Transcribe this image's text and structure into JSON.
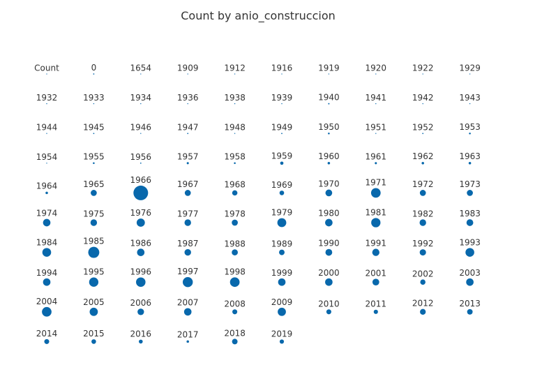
{
  "chart_data": {
    "type": "scatter",
    "title": "Count by anio_construccion",
    "xlabel": "",
    "ylabel": "",
    "grid": false,
    "legend": "none",
    "columns": 10,
    "color": "#0868ac",
    "categories": [
      "Count",
      "0",
      "1654",
      "1909",
      "1912",
      "1916",
      "1919",
      "1920",
      "1922",
      "1929",
      "1932",
      "1933",
      "1934",
      "1936",
      "1938",
      "1939",
      "1940",
      "1941",
      "1942",
      "1943",
      "1944",
      "1945",
      "1946",
      "1947",
      "1948",
      "1949",
      "1950",
      "1951",
      "1952",
      "1953",
      "1954",
      "1955",
      "1956",
      "1957",
      "1958",
      "1959",
      "1960",
      "1961",
      "1962",
      "1963",
      "1964",
      "1965",
      "1966",
      "1967",
      "1968",
      "1969",
      "1970",
      "1971",
      "1972",
      "1973",
      "1974",
      "1975",
      "1976",
      "1977",
      "1978",
      "1979",
      "1980",
      "1981",
      "1982",
      "1983",
      "1984",
      "1985",
      "1986",
      "1987",
      "1988",
      "1989",
      "1990",
      "1991",
      "1992",
      "1993",
      "1994",
      "1995",
      "1996",
      "1997",
      "1998",
      "1999",
      "2000",
      "2001",
      "2002",
      "2003",
      "2004",
      "2005",
      "2006",
      "2007",
      "2008",
      "2009",
      "2010",
      "2011",
      "2012",
      "2013",
      "2014",
      "2015",
      "2016",
      "2017",
      "2018",
      "2019"
    ],
    "values": [
      0.3,
      0.5,
      0.3,
      0.3,
      0.3,
      0.3,
      0.3,
      0.3,
      0.3,
      0.3,
      0.3,
      0.3,
      0.3,
      0.3,
      0.3,
      0.3,
      0.6,
      0.3,
      0.3,
      0.3,
      0.3,
      0.5,
      0.3,
      0.5,
      0.3,
      0.5,
      1,
      0.3,
      0.5,
      1,
      0.3,
      1,
      0.5,
      1.5,
      1,
      3.5,
      2,
      1.5,
      2,
      2,
      2,
      12,
      70,
      12,
      9,
      7,
      15,
      30,
      12,
      12,
      18,
      14,
      22,
      14,
      12,
      26,
      18,
      28,
      14,
      15,
      25,
      40,
      18,
      14,
      12,
      10,
      15,
      17,
      13,
      25,
      18,
      28,
      29,
      33,
      30,
      18,
      18,
      15,
      9,
      18,
      30,
      22,
      14,
      18,
      8,
      22,
      8,
      6,
      11,
      10,
      8,
      7,
      5,
      2,
      10,
      6
    ]
  }
}
